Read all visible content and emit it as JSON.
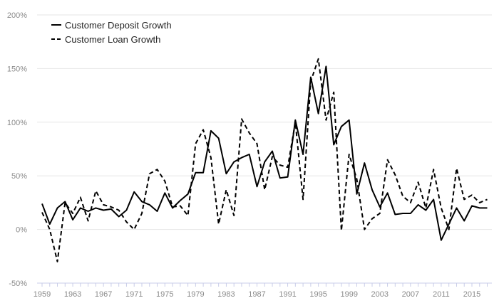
{
  "chart_data": {
    "type": "line",
    "title": "",
    "xlabel": "",
    "ylabel": "",
    "ylim": [
      -50,
      200
    ],
    "xlim": [
      1959,
      2017
    ],
    "y_ticks": [
      200,
      150,
      100,
      50,
      0,
      -50
    ],
    "y_tick_labels": [
      "200%",
      "150%",
      "100%",
      "50%",
      "0%",
      "-50%"
    ],
    "x_ticks": [
      1959,
      1963,
      1967,
      1971,
      1975,
      1979,
      1983,
      1987,
      1991,
      1995,
      1999,
      2003,
      2007,
      2011,
      2015
    ],
    "x_tick_labels": [
      "1959",
      "1963",
      "1967",
      "1971",
      "1975",
      "1979",
      "1983",
      "1987",
      "1991",
      "1995",
      "1999",
      "2003",
      "2007",
      "2011",
      "2015"
    ],
    "grid": "horizontal",
    "legend_position": "top-left",
    "x": [
      1959,
      1960,
      1961,
      1962,
      1963,
      1964,
      1965,
      1966,
      1967,
      1968,
      1969,
      1970,
      1971,
      1972,
      1973,
      1974,
      1975,
      1976,
      1977,
      1978,
      1979,
      1980,
      1981,
      1982,
      1983,
      1984,
      1985,
      1986,
      1987,
      1988,
      1989,
      1990,
      1991,
      1992,
      1993,
      1994,
      1995,
      1996,
      1997,
      1998,
      1999,
      2000,
      2001,
      2002,
      2003,
      2004,
      2005,
      2006,
      2007,
      2008,
      2009,
      2010,
      2011,
      2012,
      2013,
      2014,
      2015,
      2016,
      2017
    ],
    "series": [
      {
        "name": "Customer Deposit Growth",
        "style": "solid",
        "values": [
          24,
          5,
          20,
          26,
          9,
          20,
          17,
          20,
          18,
          19,
          12,
          18,
          35,
          26,
          23,
          17,
          34,
          20,
          27,
          33,
          53,
          53,
          92,
          85,
          52,
          63,
          67,
          70,
          40,
          63,
          73,
          48,
          49,
          102,
          70,
          142,
          108,
          152,
          79,
          96,
          102,
          33,
          62,
          37,
          21,
          34,
          14,
          15,
          15,
          23,
          18,
          28,
          -10,
          5,
          20,
          8,
          22,
          20,
          20
        ]
      },
      {
        "name": "Customer Loan Growth",
        "style": "dashed",
        "values": [
          16,
          0,
          -30,
          25,
          15,
          30,
          8,
          36,
          23,
          21,
          18,
          7,
          0,
          15,
          52,
          56,
          45,
          21,
          22,
          13,
          80,
          93,
          67,
          5,
          37,
          13,
          103,
          90,
          80,
          37,
          68,
          60,
          58,
          100,
          28,
          138,
          159,
          102,
          128,
          -1,
          70,
          47,
          0,
          10,
          15,
          65,
          51,
          31,
          25,
          44,
          20,
          56,
          20,
          0,
          57,
          28,
          32,
          25,
          28
        ]
      }
    ]
  }
}
